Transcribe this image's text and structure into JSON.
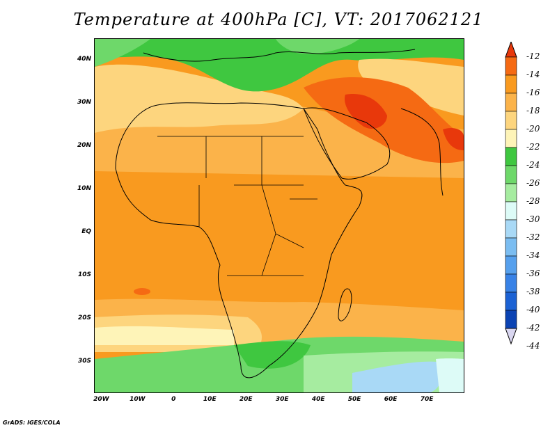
{
  "title": "Temperature at 400hPa [C], VT: 2017062121",
  "credit": "GrADS: IGES/COLA",
  "map": {
    "lat_labels": [
      "40N",
      "30N",
      "20N",
      "10N",
      "EQ",
      "10S",
      "20S",
      "30S"
    ],
    "lat_values": [
      40,
      30,
      20,
      10,
      0,
      -10,
      -20,
      -30
    ],
    "lon_labels": [
      "20W",
      "10W",
      "0",
      "10E",
      "20E",
      "30E",
      "40E",
      "50E",
      "60E",
      "70E"
    ],
    "lon_values": [
      -20,
      -10,
      0,
      10,
      20,
      30,
      40,
      50,
      60,
      70
    ],
    "extent": {
      "lon_min": -22,
      "lon_max": 80,
      "lat_min": -37,
      "lat_max": 45
    }
  },
  "colorbar": {
    "labels": [
      "-12",
      "-14",
      "-16",
      "-18",
      "-20",
      "-22",
      "-24",
      "-26",
      "-28",
      "-30",
      "-32",
      "-34",
      "-36",
      "-38",
      "-40",
      "-42",
      "-44"
    ],
    "colors": [
      "#e8380b",
      "#f56a13",
      "#f99a1f",
      "#fbb34a",
      "#fdd57e",
      "#fef4b8",
      "#3fc740",
      "#6ed86a",
      "#a6eca0",
      "#ddfbf7",
      "#a9d9f6",
      "#7bbdf1",
      "#56a0ed",
      "#3882e6",
      "#1c62d4",
      "#0b43b3",
      "#0a1a78"
    ]
  }
}
